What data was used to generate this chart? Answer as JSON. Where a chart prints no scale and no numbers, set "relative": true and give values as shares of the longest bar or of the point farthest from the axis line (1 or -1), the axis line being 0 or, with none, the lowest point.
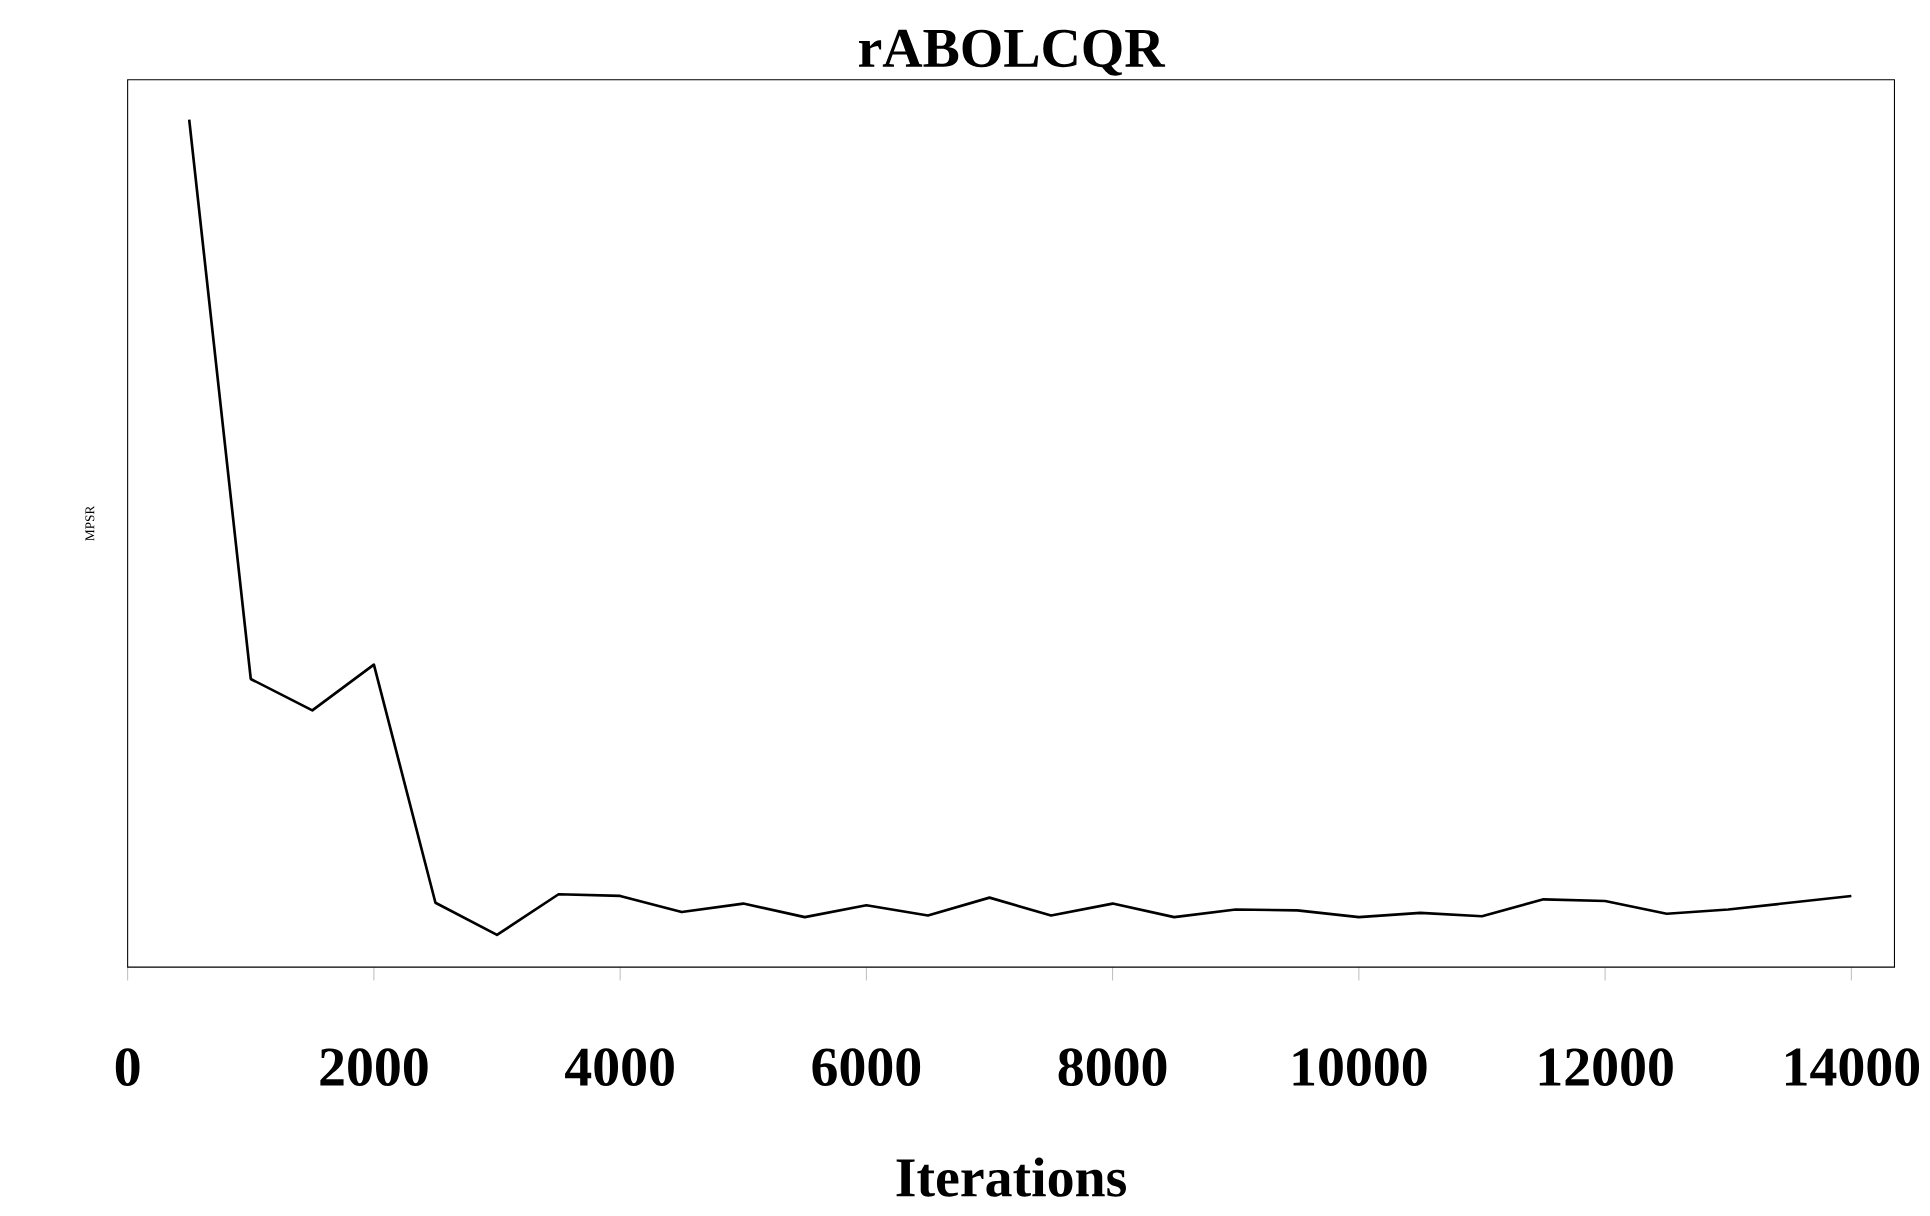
{
  "chart_data": {
    "type": "line",
    "title": "rABOLCQR",
    "xlabel": "Iterations",
    "ylabel": "MPSR",
    "relative": true,
    "x": [
      500,
      1000,
      1500,
      2000,
      2500,
      3000,
      3500,
      4000,
      4500,
      5000,
      5500,
      6000,
      6500,
      7000,
      7500,
      8000,
      8500,
      9000,
      9500,
      10000,
      10500,
      11000,
      11500,
      12000,
      12500,
      13000,
      13500,
      14000
    ],
    "series": [
      {
        "color": "#000000",
        "values": [
          1.0,
          0.34,
          0.303,
          0.357,
          0.076,
          0.038,
          0.086,
          0.084,
          0.065,
          0.075,
          0.059,
          0.073,
          0.061,
          0.082,
          0.061,
          0.075,
          0.059,
          0.068,
          0.067,
          0.059,
          0.064,
          0.06,
          0.08,
          0.078,
          0.063,
          0.068,
          0.076,
          0.084
        ]
      }
    ],
    "xlim": [
      0,
      14350
    ],
    "xticks": [
      0,
      2000,
      4000,
      6000,
      8000,
      10000,
      12000,
      14000
    ],
    "marker": "none",
    "line_style": "solid"
  }
}
